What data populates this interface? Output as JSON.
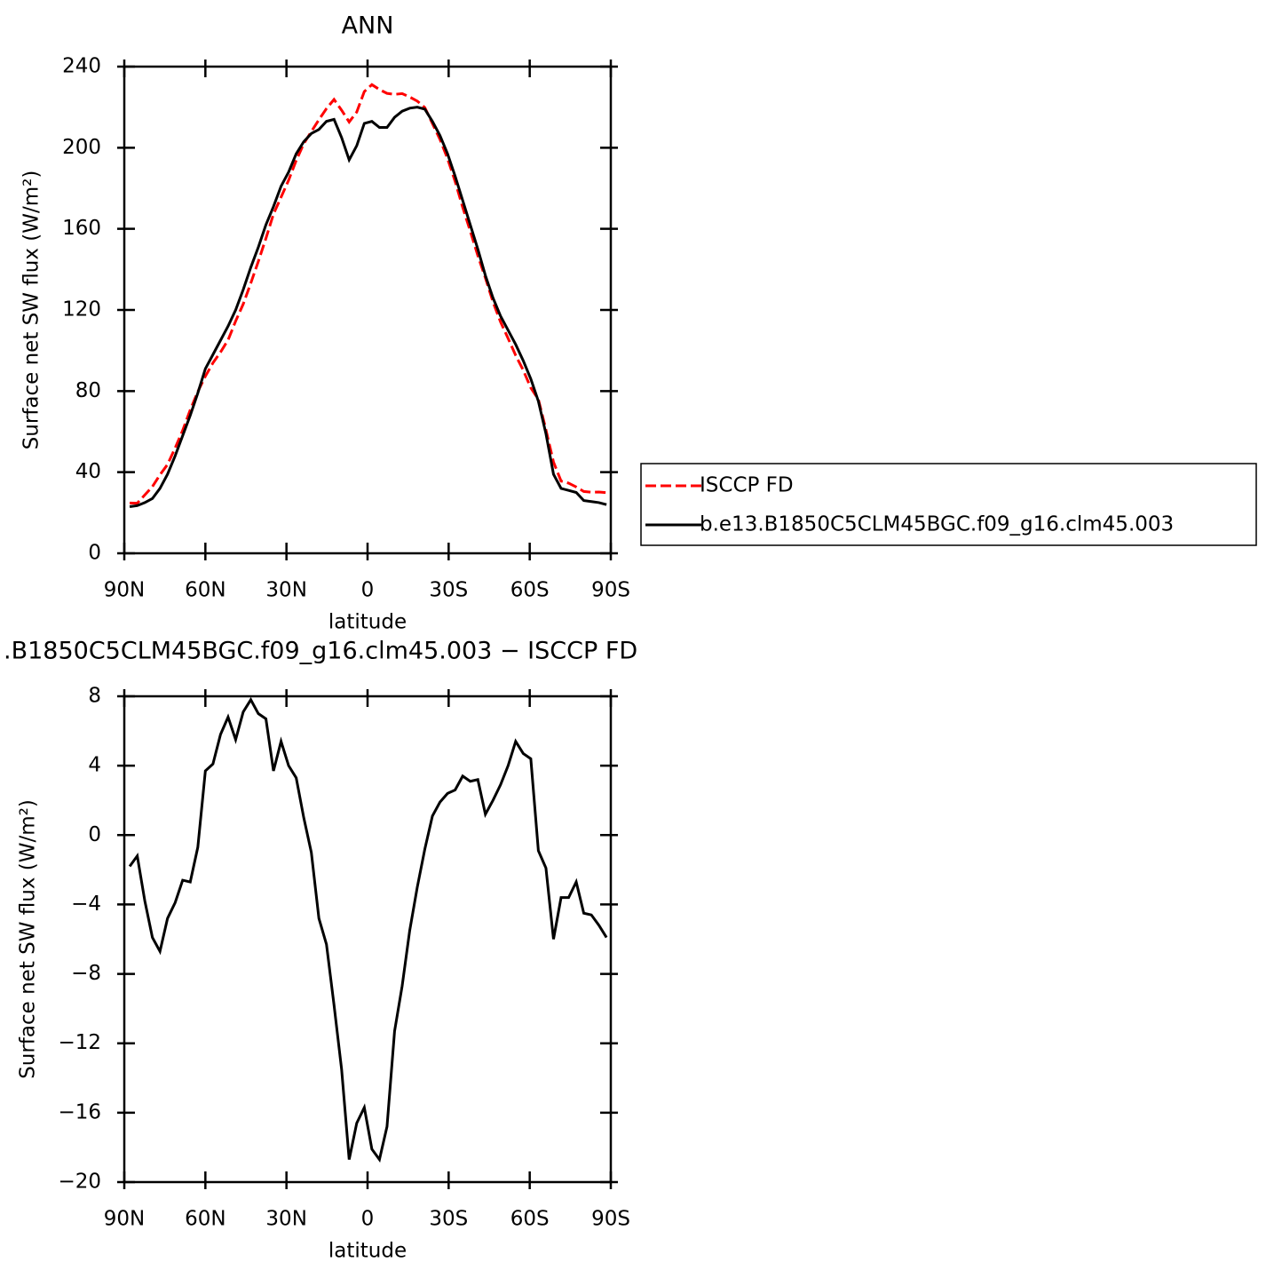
{
  "chart_data": [
    {
      "type": "line",
      "title": "ANN",
      "xlabel": "latitude",
      "ylabel": "Surface net SW flux (W/m²)",
      "x": [
        88,
        85.2,
        82.4,
        79.6,
        76.8,
        74,
        71.2,
        68.4,
        65.6,
        62.8,
        60,
        57.2,
        54.4,
        51.6,
        48.8,
        46,
        43.2,
        40.4,
        37.6,
        34.8,
        32,
        29.2,
        26.4,
        23.6,
        20.8,
        18,
        15.2,
        12.4,
        9.6,
        6.8,
        4,
        1.2,
        -1.6,
        -4.4,
        -7.2,
        -10,
        -12.8,
        -15.6,
        -18.4,
        -21.2,
        -24,
        -26.8,
        -29.6,
        -32.4,
        -35.2,
        -38,
        -40.8,
        -43.6,
        -46.4,
        -49.2,
        -52,
        -54.8,
        -57.6,
        -60.4,
        -63.2,
        -66,
        -68.8,
        -71.6,
        -74.4,
        -77.2,
        -80,
        -82.8,
        -85.6,
        -88.4
      ],
      "xlim": [
        90,
        -90
      ],
      "xticks": [
        {
          "value": 90,
          "label": "90N"
        },
        {
          "value": 60,
          "label": "60N"
        },
        {
          "value": 30,
          "label": "30N"
        },
        0,
        {
          "value": -30,
          "label": "30S"
        },
        {
          "value": -60,
          "label": "60S"
        },
        {
          "value": -90,
          "label": "90S"
        }
      ],
      "ylim": [
        0,
        240
      ],
      "yticks": [
        0,
        40,
        80,
        120,
        160,
        200,
        240
      ],
      "legend": "outside-right",
      "series": [
        {
          "name": "ISCCP FD",
          "color": "#ff0000",
          "dash": "dashed",
          "values": [
            24.8,
            24.7,
            28.8,
            32.9,
            38.7,
            43.8,
            51.9,
            60.6,
            70.7,
            79.7,
            87.3,
            93.9,
            99.2,
            105.2,
            114.5,
            122.9,
            133.2,
            144.0,
            155.3,
            167.3,
            175.6,
            184.0,
            193.7,
            202.0,
            208.0,
            213.8,
            219.3,
            223.8,
            218.5,
            212.7,
            217.6,
            227.7,
            231.1,
            228.7,
            226.8,
            226.3,
            226.7,
            225.0,
            223.0,
            219.8,
            211.9,
            204.1,
            194.6,
            183.4,
            170.6,
            158.9,
            146.8,
            135.8,
            124.0,
            114.1,
            106.0,
            97.6,
            90.3,
            81.6,
            75.9,
            60.9,
            45.0,
            35.6,
            34.6,
            32.7,
            30.5,
            30.1,
            30.2,
            29.9
          ]
        },
        {
          "name": "b.e13.B1850C5CLM45BGC.f09_g16.clm45.003",
          "color": "#000000",
          "dash": "solid",
          "values": [
            23,
            23.5,
            25,
            27,
            32,
            39,
            48,
            58,
            68,
            79,
            91,
            98,
            105,
            112,
            120,
            130,
            141,
            151,
            162,
            171,
            181,
            188,
            197,
            203,
            207,
            209,
            213,
            214,
            205,
            194,
            201,
            212,
            213,
            210,
            210,
            215,
            218,
            219.5,
            220,
            219,
            213,
            206,
            197,
            186,
            174,
            162,
            150,
            137,
            126,
            117,
            110,
            103,
            95,
            86,
            75,
            59,
            39,
            32,
            31,
            30,
            26,
            25.5,
            25,
            24
          ]
        }
      ]
    },
    {
      "type": "line",
      "title": ".B1850C5CLM45BGC.f09_g16.clm45.003 − ISCCP FD",
      "xlabel": "latitude",
      "ylabel": "Surface net SW flux (W/m²)",
      "x": [
        88,
        85.2,
        82.4,
        79.6,
        76.8,
        74,
        71.2,
        68.4,
        65.6,
        62.8,
        60,
        57.2,
        54.4,
        51.6,
        48.8,
        46,
        43.2,
        40.4,
        37.6,
        34.8,
        32,
        29.2,
        26.4,
        23.6,
        20.8,
        18,
        15.2,
        12.4,
        9.6,
        6.8,
        4,
        1.2,
        -1.6,
        -4.4,
        -7.2,
        -10,
        -12.8,
        -15.6,
        -18.4,
        -21.2,
        -24,
        -26.8,
        -29.6,
        -32.4,
        -35.2,
        -38,
        -40.8,
        -43.6,
        -46.4,
        -49.2,
        -52,
        -54.8,
        -57.6,
        -60.4,
        -63.2,
        -66,
        -68.8,
        -71.6,
        -74.4,
        -77.2,
        -80,
        -82.8,
        -85.6,
        -88.4
      ],
      "xlim": [
        90,
        -90
      ],
      "xticks": [
        {
          "value": 90,
          "label": "90N"
        },
        {
          "value": 60,
          "label": "60N"
        },
        {
          "value": 30,
          "label": "30N"
        },
        0,
        {
          "value": -30,
          "label": "30S"
        },
        {
          "value": -60,
          "label": "60S"
        },
        {
          "value": -90,
          "label": "90S"
        }
      ],
      "ylim": [
        -20,
        8
      ],
      "yticks": [
        {
          "value": -20,
          "label": "−20"
        },
        {
          "value": -16,
          "label": "−16"
        },
        {
          "value": -12,
          "label": "−12"
        },
        {
          "value": -8,
          "label": "−8"
        },
        {
          "value": -4,
          "label": "−4"
        },
        0,
        4,
        8
      ],
      "series": [
        {
          "color": "#000000",
          "dash": "solid",
          "values": [
            -1.8,
            -1.2,
            -3.8,
            -5.9,
            -6.7,
            -4.8,
            -3.9,
            -2.6,
            -2.7,
            -0.7,
            3.7,
            4.1,
            5.8,
            6.8,
            5.5,
            7.1,
            7.8,
            7.0,
            6.7,
            3.7,
            5.4,
            4.0,
            3.3,
            1.0,
            -1.0,
            -4.8,
            -6.3,
            -9.8,
            -13.5,
            -18.7,
            -16.6,
            -15.7,
            -18.1,
            -18.7,
            -16.8,
            -11.3,
            -8.7,
            -5.5,
            -3.0,
            -0.8,
            1.1,
            1.9,
            2.4,
            2.6,
            3.4,
            3.1,
            3.2,
            1.2,
            2.0,
            2.9,
            4.0,
            5.4,
            4.7,
            4.4,
            -0.9,
            -1.9,
            -6.0,
            -3.6,
            -3.6,
            -2.7,
            -4.5,
            -4.6,
            -5.2,
            -5.9
          ]
        }
      ]
    }
  ]
}
